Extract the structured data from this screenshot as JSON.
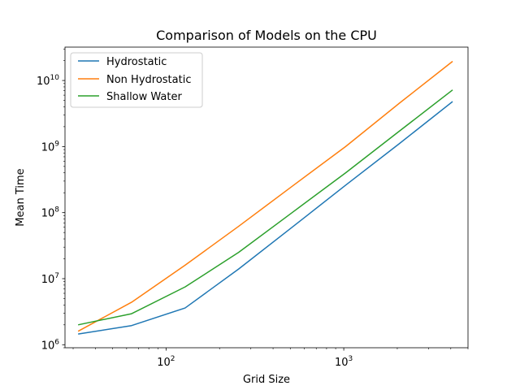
{
  "chart_data": {
    "type": "line",
    "title": "Comparison of Models on the CPU",
    "xlabel": "Grid Size",
    "ylabel": "Mean Time",
    "xscale": "log",
    "yscale": "log",
    "xlim": [
      27,
      5000
    ],
    "ylim": [
      900000,
      32000000000
    ],
    "x_ticks": [
      {
        "value": 100,
        "base": "10",
        "exp": "2"
      },
      {
        "value": 1000,
        "base": "10",
        "exp": "3"
      }
    ],
    "y_ticks": [
      {
        "value": 1000000,
        "base": "10",
        "exp": "6"
      },
      {
        "value": 10000000,
        "base": "10",
        "exp": "7"
      },
      {
        "value": 100000000,
        "base": "10",
        "exp": "8"
      },
      {
        "value": 1000000000,
        "base": "10",
        "exp": "9"
      },
      {
        "value": 10000000000,
        "base": "10",
        "exp": "10"
      }
    ],
    "x": [
      32,
      64,
      128,
      256,
      512,
      1024,
      2048,
      4096
    ],
    "series": [
      {
        "name": "Hydrostatic",
        "color": "#1f77b4",
        "values": [
          1450000,
          1950000,
          3600000,
          14000000,
          60000000,
          260000000,
          1100000000,
          4800000000
        ]
      },
      {
        "name": "Non Hydrostatic",
        "color": "#ff7f0e",
        "values": [
          1600000,
          4400000,
          16000000,
          62000000,
          250000000,
          1000000000,
          4500000000,
          19500000000
        ]
      },
      {
        "name": "Shallow Water",
        "color": "#2ca02c",
        "values": [
          2000000,
          2950000,
          7500000,
          25000000,
          100000000,
          400000000,
          1700000000,
          7200000000
        ]
      }
    ],
    "legend": "top-left",
    "grid": false
  }
}
